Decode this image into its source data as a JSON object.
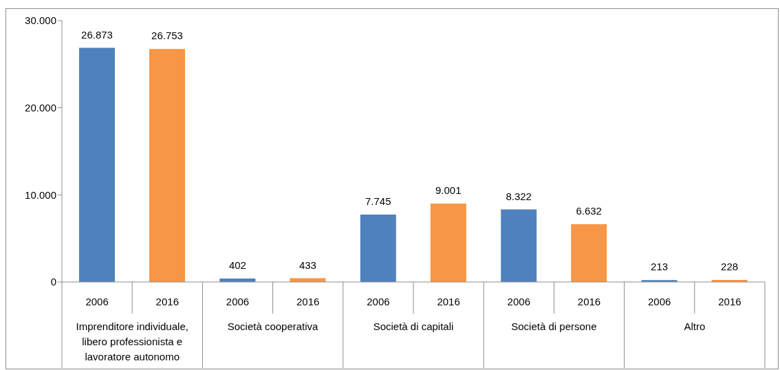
{
  "chart_data": {
    "type": "bar",
    "categories": [
      "Imprenditore individuale, libero professionista e lavoratore autonomo",
      "Società cooperativa",
      "Società di capitali",
      "Società di persone",
      "Altro"
    ],
    "series": [
      {
        "name": "2006",
        "color": "#4f81bd",
        "values": [
          26873,
          402,
          7745,
          8322,
          213
        ],
        "value_labels": [
          "26.873",
          "402",
          "7.745",
          "8.322",
          "213"
        ]
      },
      {
        "name": "2016",
        "color": "#f79646",
        "values": [
          26753,
          433,
          9001,
          6632,
          228
        ],
        "value_labels": [
          "26.753",
          "433",
          "9.001",
          "6.632",
          "228"
        ]
      }
    ],
    "ylim": [
      0,
      30000
    ],
    "yticks": [
      {
        "value": 0,
        "label": "0"
      },
      {
        "value": 10000,
        "label": "10.000"
      },
      {
        "value": 20000,
        "label": "20.000"
      },
      {
        "value": 30000,
        "label": "30.000"
      }
    ],
    "grid": false,
    "legend": false
  }
}
